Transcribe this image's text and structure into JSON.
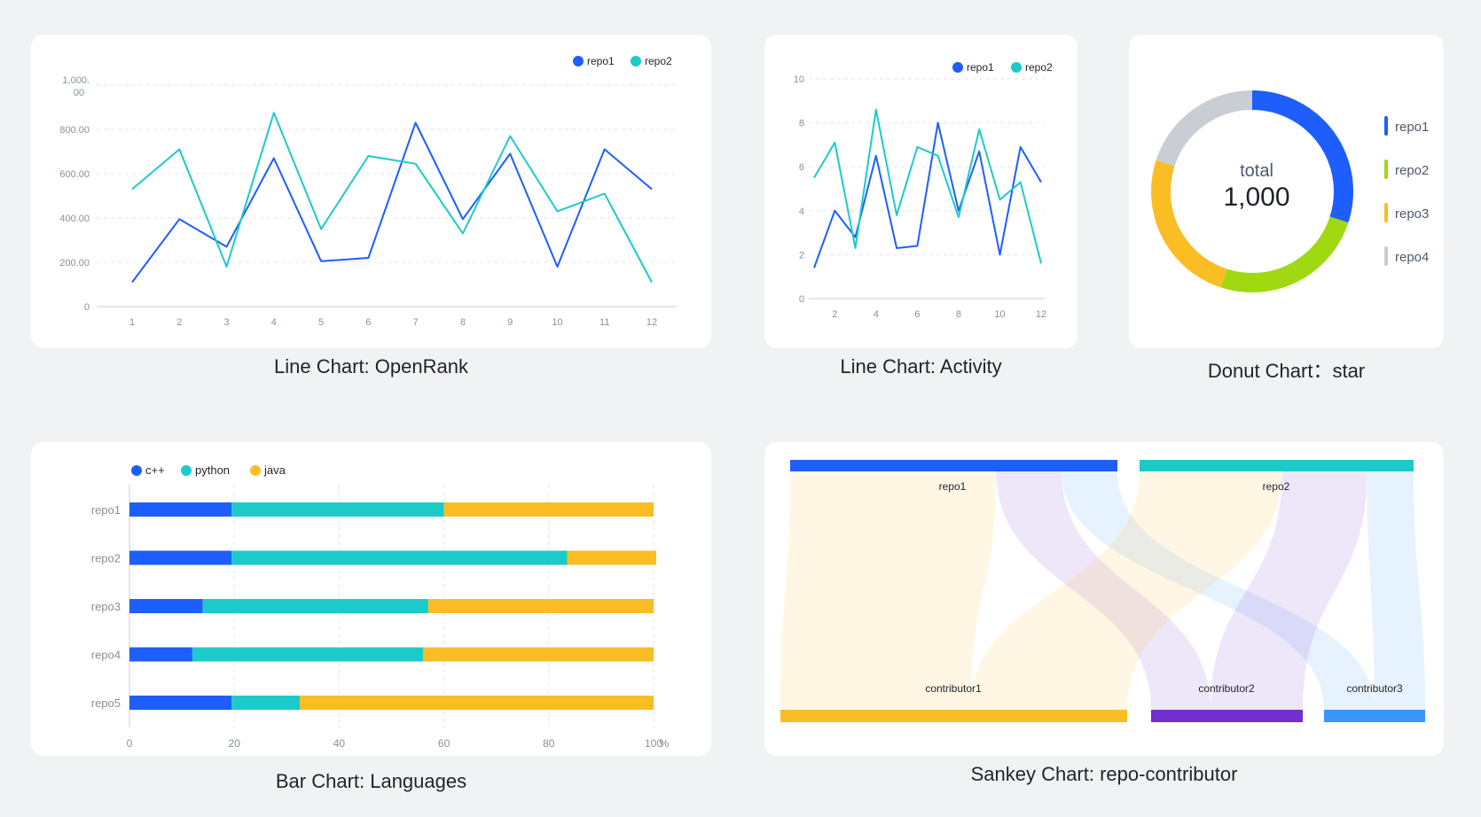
{
  "colors": {
    "blue": "#1e5efc",
    "teal": "#1bcbc9",
    "green": "#a0d911",
    "gold": "#fbbd24",
    "gray": "#c9cdd4",
    "purple": "#722ed1",
    "lightblue": "#3a95ff"
  },
  "captions": {
    "openrank": "Line Chart: OpenRank",
    "activity": "Line Chart: Activity",
    "star": "Donut Chart：star",
    "languages": "Bar Chart: Languages",
    "sankey": "Sankey Chart: repo-contributor"
  },
  "chart_data": [
    {
      "id": "openrank",
      "type": "line",
      "title": "Line Chart: OpenRank",
      "x": [
        1,
        2,
        3,
        4,
        5,
        6,
        7,
        8,
        9,
        10,
        11,
        12
      ],
      "ylim": [
        0,
        1000
      ],
      "y_ticks": [
        "0",
        "200.00",
        "400.00",
        "600.00",
        "800.00",
        "1,000.00"
      ],
      "x_ticks": [
        "1",
        "2",
        "3",
        "4",
        "5",
        "6",
        "7",
        "8",
        "9",
        "10",
        "11",
        "12"
      ],
      "legend": [
        "repo1",
        "repo2"
      ],
      "series": [
        {
          "name": "repo1",
          "values": [
            110,
            395,
            270,
            670,
            205,
            220,
            830,
            395,
            690,
            180,
            710,
            530
          ]
        },
        {
          "name": "repo2",
          "values": [
            530,
            710,
            180,
            875,
            350,
            680,
            645,
            330,
            770,
            430,
            510,
            110
          ]
        }
      ]
    },
    {
      "id": "activity",
      "type": "line",
      "title": "Line Chart: Activity",
      "x": [
        1,
        2,
        3,
        4,
        5,
        6,
        7,
        8,
        9,
        10,
        11,
        12
      ],
      "ylim": [
        0,
        10
      ],
      "y_ticks": [
        "0",
        "2",
        "4",
        "6",
        "8",
        "10"
      ],
      "x_ticks": [
        "2",
        "4",
        "6",
        "8",
        "10",
        "12"
      ],
      "legend": [
        "repo1",
        "repo2"
      ],
      "series": [
        {
          "name": "repo1",
          "values": [
            1.4,
            4,
            2.8,
            6.5,
            2.3,
            2.4,
            8,
            4,
            6.7,
            2,
            6.9,
            5.3
          ]
        },
        {
          "name": "repo2",
          "values": [
            5.5,
            7.1,
            2.3,
            8.6,
            3.8,
            6.9,
            6.5,
            3.7,
            7.7,
            4.5,
            5.3,
            1.6
          ]
        }
      ]
    },
    {
      "id": "star",
      "type": "pie",
      "title": "Donut Chart：star",
      "center_label": "total",
      "center_value": "1,000",
      "categories": [
        "repo1",
        "repo2",
        "repo3",
        "repo4"
      ],
      "values": [
        300,
        250,
        250,
        200
      ]
    },
    {
      "id": "languages",
      "type": "bar",
      "orientation": "horizontal",
      "stacked": true,
      "title": "Bar Chart: Languages",
      "categories": [
        "repo1",
        "repo2",
        "repo3",
        "repo4",
        "repo5"
      ],
      "x_ticks": [
        "0",
        "20",
        "40",
        "60",
        "80",
        "100"
      ],
      "x_unit": "%",
      "xlim": [
        0,
        100
      ],
      "legend": [
        "c++",
        "python",
        "java"
      ],
      "series": [
        {
          "name": "c++",
          "values": [
            19.5,
            19.5,
            14,
            12,
            19.5
          ]
        },
        {
          "name": "python",
          "values": [
            40.5,
            64,
            43,
            44,
            13
          ]
        },
        {
          "name": "java",
          "values": [
            40,
            17,
            43,
            44,
            67.5
          ]
        }
      ]
    },
    {
      "id": "sankey",
      "type": "sankey",
      "title": "Sankey Chart: repo-contributor",
      "sources": [
        "repo1",
        "repo2"
      ],
      "targets": [
        "contributor1",
        "contributor2",
        "contributor3"
      ],
      "links": [
        {
          "source": "repo1",
          "target": "contributor1",
          "value": 63
        },
        {
          "source": "repo1",
          "target": "contributor2",
          "value": 20
        },
        {
          "source": "repo1",
          "target": "contributor3",
          "value": 17
        },
        {
          "source": "repo2",
          "target": "contributor1",
          "value": 52
        },
        {
          "source": "repo2",
          "target": "contributor2",
          "value": 31
        },
        {
          "source": "repo2",
          "target": "contributor3",
          "value": 17
        }
      ]
    }
  ]
}
